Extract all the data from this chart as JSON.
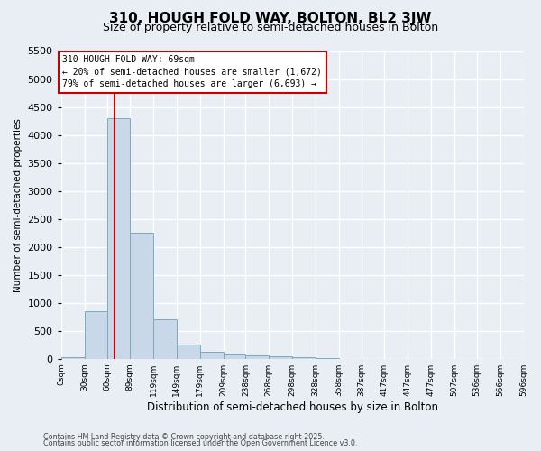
{
  "title1": "310, HOUGH FOLD WAY, BOLTON, BL2 3JW",
  "title2": "Size of property relative to semi-detached houses in Bolton",
  "xlabel": "Distribution of semi-detached houses by size in Bolton",
  "ylabel": "Number of semi-detached properties",
  "bin_edges": [
    0,
    30,
    60,
    89,
    119,
    149,
    179,
    209,
    238,
    268,
    298,
    328,
    358,
    387,
    417,
    447,
    477,
    507,
    536,
    566,
    596
  ],
  "bar_heights": [
    30,
    850,
    4300,
    2250,
    700,
    250,
    125,
    70,
    65,
    50,
    35,
    5,
    3,
    2,
    1,
    1,
    1,
    1,
    1,
    1
  ],
  "bar_color": "#c8d8e8",
  "bar_edge_color": "#7aabbf",
  "property_size": 69,
  "vline_color": "#cc0000",
  "ylim": [
    0,
    5500
  ],
  "yticks": [
    0,
    500,
    1000,
    1500,
    2000,
    2500,
    3000,
    3500,
    4000,
    4500,
    5000,
    5500
  ],
  "annotation_text": "310 HOUGH FOLD WAY: 69sqm\n← 20% of semi-detached houses are smaller (1,672)\n79% of semi-detached houses are larger (6,693) →",
  "annotation_box_color": "#ffffff",
  "annotation_box_edge": "#cc0000",
  "footnote1": "Contains HM Land Registry data © Crown copyright and database right 2025.",
  "footnote2": "Contains public sector information licensed under the Open Government Licence v3.0.",
  "bg_color": "#e8eef4",
  "plot_bg_color": "#e8eef4",
  "grid_color": "#ffffff",
  "title1_fontsize": 11,
  "title2_fontsize": 9,
  "tick_labels": [
    "0sqm",
    "30sqm",
    "60sqm",
    "89sqm",
    "119sqm",
    "149sqm",
    "179sqm",
    "209sqm",
    "238sqm",
    "268sqm",
    "298sqm",
    "328sqm",
    "358sqm",
    "387sqm",
    "417sqm",
    "447sqm",
    "477sqm",
    "507sqm",
    "536sqm",
    "566sqm",
    "596sqm"
  ]
}
